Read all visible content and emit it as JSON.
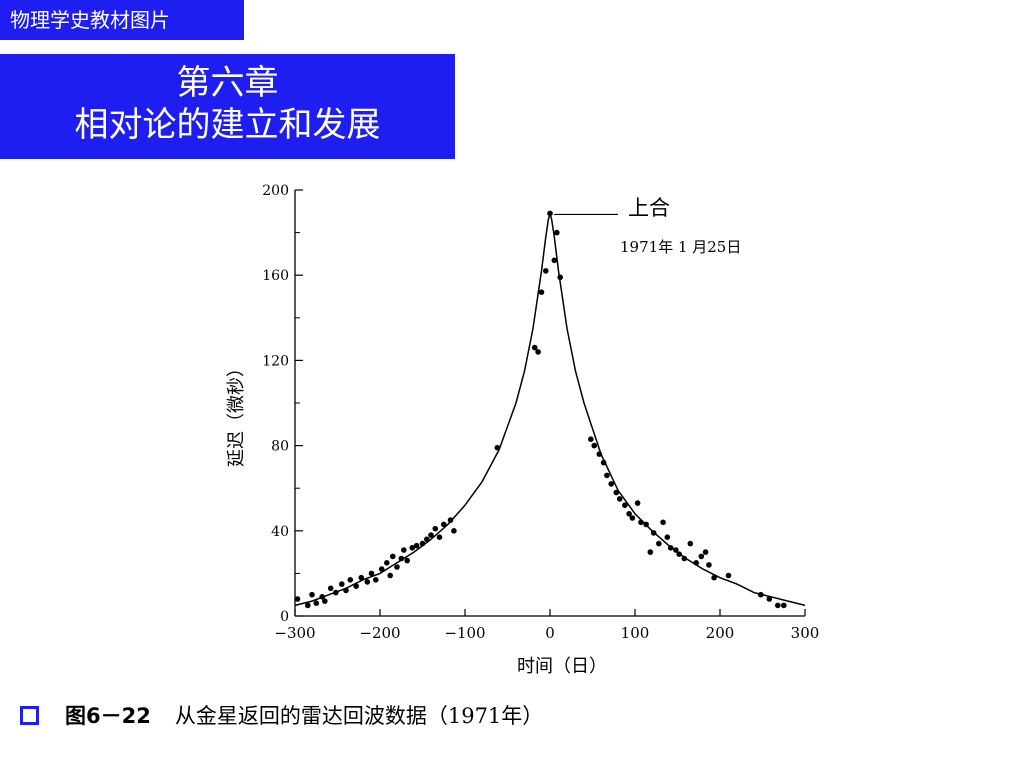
{
  "header": {
    "tag": "物理学史教材图片"
  },
  "title": {
    "line1": "第六章",
    "line2": "相对论的建立和发展"
  },
  "caption": {
    "label": "图6－22",
    "text": "从金星返回的雷达回波数据（1971年）"
  },
  "colors": {
    "accent": "#1e1ef0"
  },
  "chart_data": {
    "type": "scatter",
    "xlabel": "时间（日）",
    "ylabel": "延迟（微秒）",
    "xlim": [
      -300,
      300
    ],
    "ylim": [
      0,
      200
    ],
    "xticks": [
      -300,
      -200,
      -100,
      0,
      100,
      200,
      300
    ],
    "xtick_labels": [
      "−300",
      "−200",
      "−100",
      "0",
      "100",
      "200",
      "300"
    ],
    "yticks": [
      0,
      40,
      80,
      120,
      160,
      200
    ],
    "annotations": [
      {
        "text": "上合",
        "x": 5,
        "y": 189
      },
      {
        "text": "1971年 1 月25日"
      }
    ],
    "series": [
      {
        "kind": "points",
        "x": [
          -297,
          -285,
          -280,
          -275,
          -268,
          -265,
          -258,
          -252,
          -245,
          -240,
          -235,
          -228,
          -222,
          -215,
          -210,
          -205,
          -198,
          -192,
          -188,
          -185,
          -180,
          -175,
          -172,
          -168,
          -162,
          -157,
          -150,
          -145,
          -140,
          -135,
          -130,
          -125,
          -117,
          -113,
          -62,
          -18,
          -14,
          -10,
          -5,
          0,
          5,
          8,
          12,
          48,
          52,
          58,
          63,
          67,
          72,
          78,
          82,
          88,
          93,
          97,
          103,
          107,
          113,
          118,
          122,
          128,
          133,
          138,
          142,
          148,
          152,
          158,
          165,
          172,
          178,
          183,
          187,
          193,
          210,
          248,
          258,
          268,
          275
        ],
        "y": [
          8,
          5,
          10,
          6,
          9,
          7,
          13,
          11,
          15,
          12,
          17,
          14,
          18,
          16,
          20,
          17,
          22,
          25,
          19,
          28,
          23,
          27,
          31,
          26,
          32,
          33,
          34,
          36,
          38,
          41,
          37,
          43,
          45,
          40,
          79,
          126,
          124,
          152,
          162,
          189,
          167,
          180,
          159,
          83,
          80,
          76,
          72,
          66,
          62,
          58,
          55,
          52,
          48,
          46,
          53,
          44,
          43,
          30,
          39,
          34,
          44,
          37,
          32,
          31,
          29,
          27,
          34,
          25,
          28,
          30,
          24,
          18,
          19,
          10,
          8,
          5,
          5
        ]
      },
      {
        "kind": "curve",
        "x": [
          -300,
          -280,
          -260,
          -240,
          -220,
          -200,
          -180,
          -160,
          -140,
          -120,
          -100,
          -80,
          -60,
          -40,
          -30,
          -20,
          -10,
          -5,
          -2,
          0,
          2,
          5,
          10,
          20,
          30,
          40,
          60,
          80,
          100,
          120,
          140,
          160,
          180,
          200,
          220,
          240,
          260,
          280,
          300
        ],
        "y": [
          5,
          7,
          10,
          13,
          17,
          20,
          25,
          30,
          36,
          43,
          52,
          63,
          78,
          100,
          115,
          135,
          162,
          178,
          186,
          189,
          186,
          178,
          162,
          135,
          115,
          100,
          76,
          59,
          48,
          40,
          33,
          27,
          22,
          18,
          15,
          11,
          9,
          7,
          5
        ]
      }
    ]
  }
}
